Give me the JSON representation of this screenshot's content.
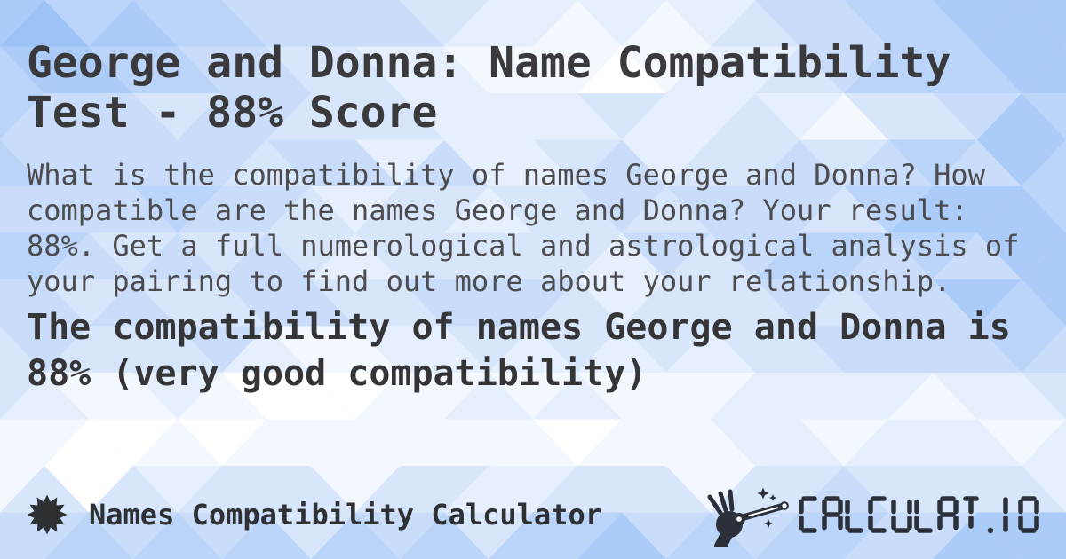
{
  "card": {
    "title": "George and Donna: Name Compatibility Test - 88% Score",
    "description": "What is the compatibility of names George and Donna? How compatible are the names George and Donna? Your result: 88%. Get a full numerological and astrological analysis of your pairing to find out more about your relationship.",
    "result": "The compatibility of names George and Donna is 88% (very good compatibility)"
  },
  "footer": {
    "app_label": "Names Compatibility Calculator",
    "logo_text": "CALCULAT.IO"
  },
  "icons": {
    "footer_left": "starburst",
    "logo_left": "hand-holding-magic-wand-with-stars"
  },
  "colors": {
    "title_text": "#3a3a3c",
    "description_text": "#4c4c4f",
    "result_text": "#353538",
    "footer_text": "#2e3134",
    "logo_color": "#2b303b",
    "background_palette": [
      "#9cc2f6",
      "#abccf8",
      "#bad4fa",
      "#c9ddfb",
      "#d8e6fc",
      "#e6effd",
      "#f3f8ff",
      "#ffffff"
    ]
  }
}
